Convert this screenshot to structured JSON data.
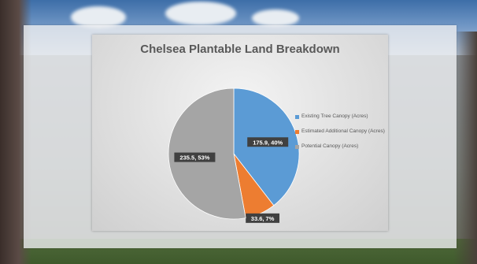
{
  "chart_data": {
    "type": "pie",
    "title": "Chelsea Plantable Land Breakdown",
    "slices": [
      {
        "name": "Existing Tree Canopy (Acres)",
        "value": 175.9,
        "percent": 40,
        "label": "175.9, 40%",
        "color": "#5b9bd5"
      },
      {
        "name": "Estimated Additional Canopy (Acres)",
        "value": 33.6,
        "percent": 7,
        "label": "33.6, 7%",
        "color": "#ed7d31"
      },
      {
        "name": "Potential Canopy (Acres)",
        "value": 235.5,
        "percent": 53,
        "label": "235.5, 53%",
        "color": "#a5a5a5"
      }
    ],
    "start_angle_deg": 0,
    "direction": "clockwise",
    "legend_position": "right"
  },
  "legend": {
    "items": [
      {
        "label": "Existing Tree Canopy (Acres)"
      },
      {
        "label": "Estimated Additional Canopy (Acres)"
      },
      {
        "label": "Potential Canopy (Acres)"
      }
    ]
  }
}
